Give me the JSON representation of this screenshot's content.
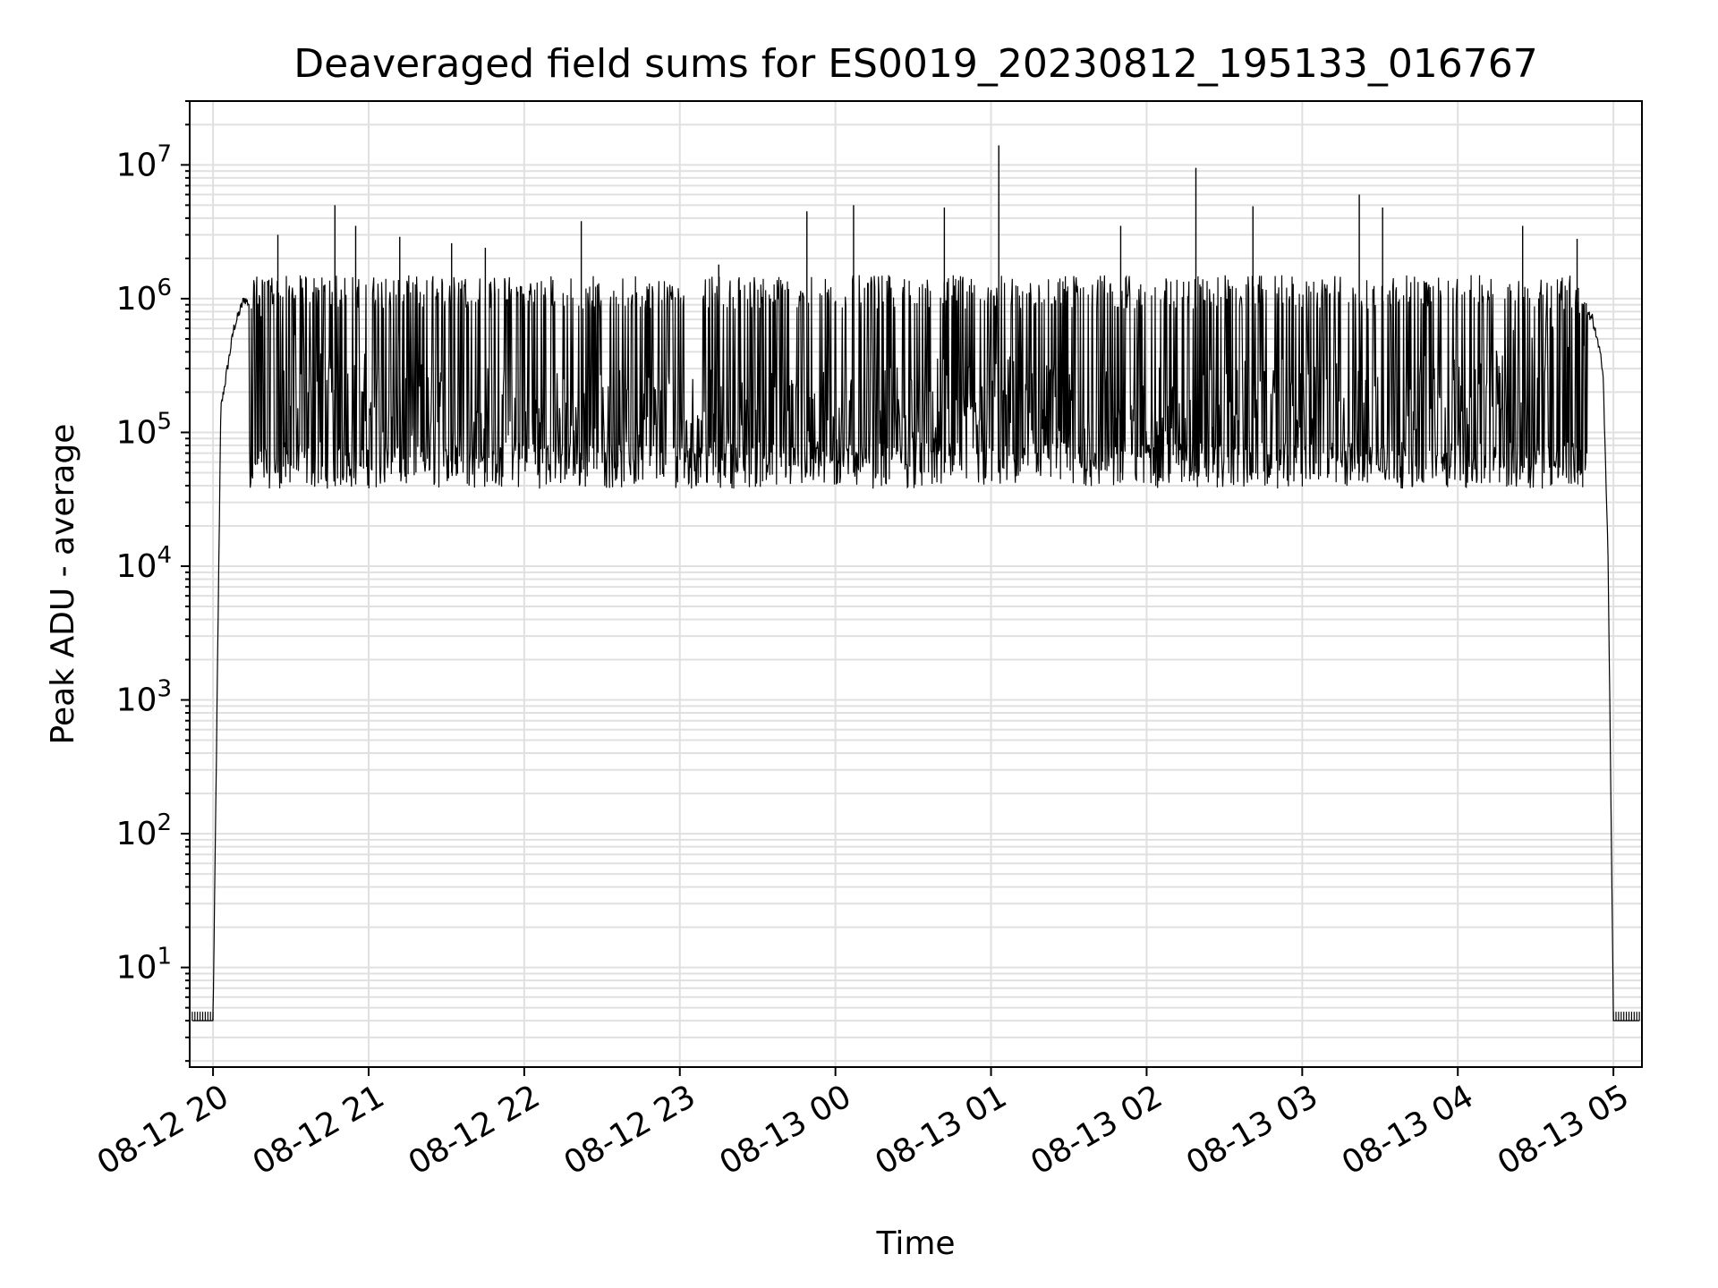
{
  "chart_data": {
    "type": "line",
    "title": "Deaveraged field sums for ES0019_20230812_195133_016767",
    "xlabel": "Time",
    "ylabel": "Peak ADU - average",
    "yscale": "log",
    "xlim": [
      "2023-08-12 19:51",
      "2023-08-13 05:11"
    ],
    "ylim": [
      1.8,
      30000000
    ],
    "x_ticks": [
      "08-12 20",
      "08-12 21",
      "08-12 22",
      "08-12 23",
      "08-13 00",
      "08-13 01",
      "08-13 02",
      "08-13 03",
      "08-13 04",
      "08-13 05"
    ],
    "y_tick_exponents": [
      1,
      2,
      3,
      4,
      5,
      6,
      7
    ],
    "y_tick_base": "10",
    "grid": "major-and-minor",
    "line_color": "#000000",
    "grid_color": "#e0e0e0",
    "baseline_level": 4,
    "series": [
      {
        "envelope": [
          {
            "x": "2023-08-12 19:52",
            "y": 4
          },
          {
            "x": "2023-08-12 20:00",
            "y": 4
          },
          {
            "x": "2023-08-12 20:03",
            "y": 150000
          },
          {
            "x": "2023-08-12 20:08",
            "y": 600000
          },
          {
            "x": "2023-08-12 20:12",
            "y": 1000000
          },
          {
            "x": "2023-08-12 20:20",
            "y": 700000
          },
          {
            "x": "2023-08-12 20:30",
            "y": 300000
          },
          {
            "x": "2023-08-12 21:00",
            "y": 200000
          },
          {
            "x": "2023-08-12 22:00",
            "y": 150000
          },
          {
            "x": "2023-08-12 23:00",
            "y": 150000
          },
          {
            "x": "2023-08-13 00:00",
            "y": 150000
          },
          {
            "x": "2023-08-13 01:00",
            "y": 200000
          },
          {
            "x": "2023-08-13 02:00",
            "y": 150000
          },
          {
            "x": "2023-08-13 03:00",
            "y": 200000
          },
          {
            "x": "2023-08-13 04:00",
            "y": 200000
          },
          {
            "x": "2023-08-13 04:30",
            "y": 350000
          },
          {
            "x": "2023-08-13 04:45",
            "y": 900000
          },
          {
            "x": "2023-08-13 04:52",
            "y": 700000
          },
          {
            "x": "2023-08-13 04:56",
            "y": 300000
          },
          {
            "x": "2023-08-13 04:58",
            "y": 10000
          },
          {
            "x": "2023-08-13 05:00",
            "y": 4
          },
          {
            "x": "2023-08-13 05:10",
            "y": 4
          }
        ],
        "floor": 50000,
        "ceiling": 1500000,
        "peaks": [
          {
            "x": "2023-08-12 20:25",
            "y": 3000000
          },
          {
            "x": "2023-08-12 20:47",
            "y": 5000000
          },
          {
            "x": "2023-08-12 20:55",
            "y": 3500000
          },
          {
            "x": "2023-08-12 21:12",
            "y": 2900000
          },
          {
            "x": "2023-08-12 21:32",
            "y": 2600000
          },
          {
            "x": "2023-08-12 21:45",
            "y": 2400000
          },
          {
            "x": "2023-08-12 22:22",
            "y": 3800000
          },
          {
            "x": "2023-08-12 23:15",
            "y": 1800000
          },
          {
            "x": "2023-08-12 23:49",
            "y": 4500000
          },
          {
            "x": "2023-08-13 00:07",
            "y": 5000000
          },
          {
            "x": "2023-08-13 00:42",
            "y": 4800000
          },
          {
            "x": "2023-08-13 01:03",
            "y": 14000000
          },
          {
            "x": "2023-08-13 01:50",
            "y": 3500000
          },
          {
            "x": "2023-08-13 02:19",
            "y": 9500000
          },
          {
            "x": "2023-08-13 02:41",
            "y": 4900000
          },
          {
            "x": "2023-08-13 03:22",
            "y": 6000000
          },
          {
            "x": "2023-08-13 03:31",
            "y": 4800000
          },
          {
            "x": "2023-08-13 04:25",
            "y": 3500000
          },
          {
            "x": "2023-08-13 04:46",
            "y": 2800000
          }
        ]
      }
    ]
  }
}
